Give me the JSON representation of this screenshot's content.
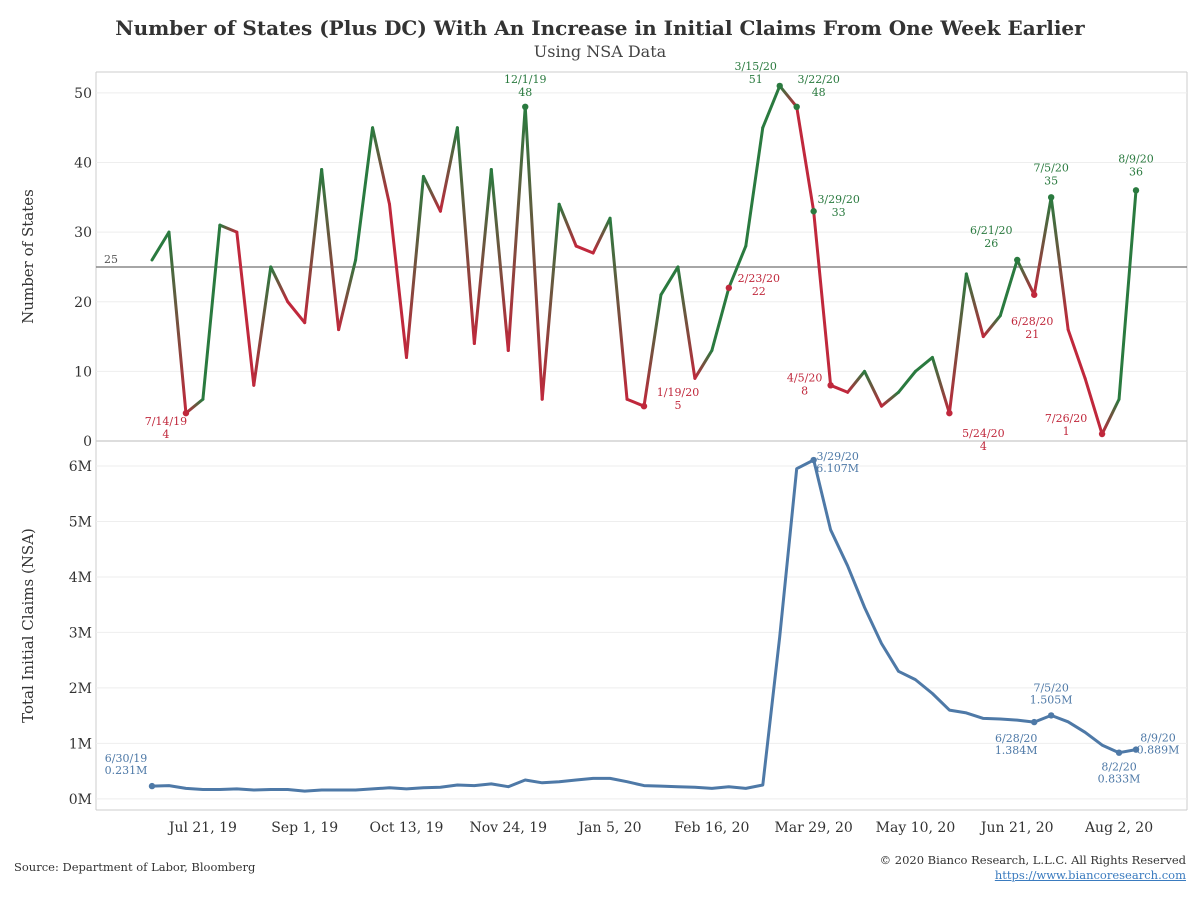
{
  "header": {
    "title": "Number of States (Plus DC) With An Increase in Initial Claims From One Week Earlier",
    "subtitle": "Using NSA Data"
  },
  "footer": {
    "source": "Source: Department of Labor, Bloomberg",
    "copyright": "© 2020 Bianco Research, L.L.C. All Rights Reserved",
    "url": "https://www.biancoresearch.com"
  },
  "colors": {
    "up": "#2a7a3f",
    "down": "#c0283c",
    "claims": "#4e79a7",
    "reference": "#888888",
    "grid": "#eeeeee",
    "frame": "#cccccc"
  },
  "chart_data": [
    {
      "type": "line",
      "title": "Number of States (Plus DC) With An Increase in Initial Claims From One Week Earlier",
      "subtitle": "Using NSA Data",
      "ylabel": "Number of States",
      "ylim": [
        0,
        53
      ],
      "yticks": [
        0,
        10,
        20,
        30,
        40,
        50
      ],
      "reference_line": {
        "value": 25,
        "label": "25"
      },
      "coloring": "green when rising, red when falling",
      "x_start": "6/30/19",
      "x_interval": "weekly",
      "values": [
        26,
        30,
        4,
        6,
        31,
        30,
        8,
        25,
        20,
        17,
        39,
        16,
        26,
        45,
        34,
        12,
        38,
        33,
        45,
        14,
        39,
        13,
        48,
        6,
        34,
        28,
        27,
        32,
        6,
        5,
        21,
        25,
        9,
        13,
        22,
        28,
        45,
        51,
        48,
        33,
        8,
        7,
        10,
        5,
        7,
        10,
        12,
        4,
        24,
        15,
        18,
        26,
        21,
        35,
        16,
        9,
        1,
        6,
        36
      ],
      "annotations": [
        {
          "date": "7/14/19",
          "value": "4",
          "color": "down"
        },
        {
          "date": "12/1/19",
          "value": "48",
          "color": "up"
        },
        {
          "date": "1/19/20",
          "value": "5",
          "color": "down"
        },
        {
          "date": "2/23/20",
          "value": "22",
          "color": "down"
        },
        {
          "date": "3/15/20",
          "value": "51",
          "color": "up"
        },
        {
          "date": "3/22/20",
          "value": "48",
          "color": "up"
        },
        {
          "date": "3/29/20",
          "value": "33",
          "color": "up"
        },
        {
          "date": "4/5/20",
          "value": "8",
          "color": "down"
        },
        {
          "date": "5/24/20",
          "value": "4",
          "color": "down"
        },
        {
          "date": "6/21/20",
          "value": "26",
          "color": "up"
        },
        {
          "date": "6/28/20",
          "value": "21",
          "color": "down"
        },
        {
          "date": "7/5/20",
          "value": "35",
          "color": "up"
        },
        {
          "date": "7/26/20",
          "value": "1",
          "color": "down"
        },
        {
          "date": "8/9/20",
          "value": "36",
          "color": "up"
        }
      ]
    },
    {
      "type": "line",
      "ylabel": "Total Initial Claims (NSA)",
      "ylim": [
        -0.2,
        6.45
      ],
      "yunit": "millions",
      "yticks": [
        0,
        1,
        2,
        3,
        4,
        5,
        6
      ],
      "ytick_labels": [
        "0M",
        "1M",
        "2M",
        "3M",
        "4M",
        "5M",
        "6M"
      ],
      "x_start": "6/30/19",
      "x_interval": "weekly",
      "x_tick_labels": [
        "Jul 21, 19",
        "Sep 1, 19",
        "Oct 13, 19",
        "Nov 24, 19",
        "Jan 5, 20",
        "Feb 16, 20",
        "Mar 29, 20",
        "May 10, 20",
        "Jun 21, 20",
        "Aug 2, 20"
      ],
      "values": [
        0.231,
        0.24,
        0.19,
        0.17,
        0.17,
        0.18,
        0.16,
        0.17,
        0.17,
        0.14,
        0.16,
        0.16,
        0.16,
        0.18,
        0.2,
        0.18,
        0.2,
        0.21,
        0.25,
        0.24,
        0.27,
        0.22,
        0.34,
        0.29,
        0.31,
        0.34,
        0.37,
        0.37,
        0.31,
        0.24,
        0.23,
        0.22,
        0.21,
        0.19,
        0.22,
        0.19,
        0.25,
        2.92,
        5.95,
        6.107,
        4.85,
        4.2,
        3.45,
        2.8,
        2.3,
        2.15,
        1.9,
        1.6,
        1.55,
        1.45,
        1.44,
        1.42,
        1.384,
        1.505,
        1.39,
        1.2,
        0.97,
        0.833,
        0.889
      ],
      "annotations": [
        {
          "date": "6/30/19",
          "value": "0.231M"
        },
        {
          "date": "3/29/20",
          "value": "6.107M"
        },
        {
          "date": "6/28/20",
          "value": "1.384M"
        },
        {
          "date": "7/5/20",
          "value": "1.505M"
        },
        {
          "date": "8/2/20",
          "value": "0.833M"
        },
        {
          "date": "8/9/20",
          "value": "0.889M"
        }
      ]
    }
  ]
}
